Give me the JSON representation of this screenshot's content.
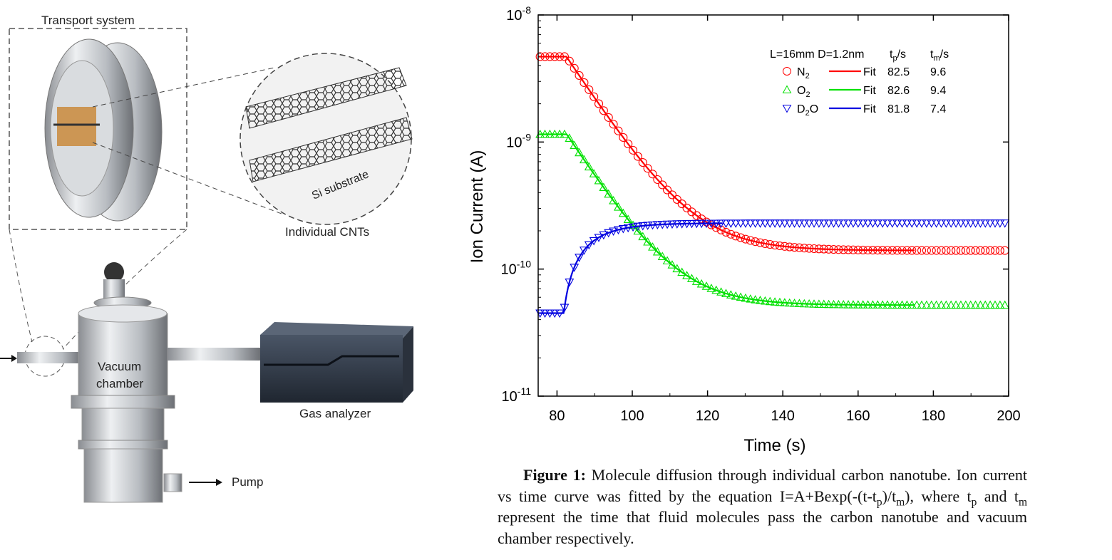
{
  "diagram": {
    "transport_label": "Transport system",
    "cnt_label": "Individual CNTs",
    "substrate_label": "Si substrate",
    "chamber_label_1": "Vacuum",
    "chamber_label_2": "chamber",
    "analyzer_label": "Gas analyzer",
    "pump_label": "Pump"
  },
  "legend": {
    "header": "L=16mm D=1.2nm",
    "tp_header": "t",
    "tp_sub": "p",
    "tm_header": "t",
    "tm_sub": "m",
    "unit": "/s",
    "fit_label": "Fit"
  },
  "chart_data": {
    "type": "scatter",
    "title": "",
    "xlabel": "Time (s)",
    "ylabel": "Ion Current (A)",
    "xlim": [
      75,
      200
    ],
    "ylim": [
      1e-11,
      1e-08
    ],
    "yscale": "log",
    "xticks": [
      "80",
      "100",
      "120",
      "140",
      "160",
      "180",
      "200"
    ],
    "xtick_values": [
      80,
      100,
      120,
      140,
      160,
      180,
      200
    ],
    "yticks": [
      {
        "base": "10",
        "exp": "-8",
        "value": 1e-08
      },
      {
        "base": "10",
        "exp": "-9",
        "value": 1e-09
      },
      {
        "base": "10",
        "exp": "-10",
        "value": 1e-10
      },
      {
        "base": "10",
        "exp": "-11",
        "value": 1e-11
      }
    ],
    "grid": false,
    "legend_position": "top-right",
    "series": [
      {
        "name": "N",
        "sub": "2",
        "marker": "circle",
        "color": "#ff0000",
        "tp": "82.5",
        "tm": "9.6",
        "start": 4.7e-09,
        "end": 1.4e-10,
        "direction": "decay",
        "marker_step": 1.3,
        "fit_range": [
          82.5,
          175
        ]
      },
      {
        "name": "O",
        "sub": "2",
        "marker": "triangle-up",
        "color": "#00e000",
        "tp": "82.6",
        "tm": "9.4",
        "start": 1.15e-09,
        "end": 5.2e-11,
        "direction": "decay",
        "marker_step": 1.3,
        "fit_range": [
          82.6,
          175
        ]
      },
      {
        "name": "D",
        "sub": "2",
        "name_tail": "O",
        "marker": "triangle-down",
        "color": "#0000e0",
        "tp": "81.8",
        "tm": "7.4",
        "start": 4.5e-11,
        "end": 2.3e-10,
        "direction": "rise",
        "marker_step": 1.3,
        "fit_range": [
          81.8,
          124
        ]
      }
    ]
  },
  "caption": {
    "bold": "Figure 1:",
    "text_1": " Molecule diffusion through individual carbon nanotube. Ion current vs time curve was fitted by the equation I=A+Bexp(-(t-t",
    "sub_p": "p",
    "text_2": ")/t",
    "sub_m": "m",
    "text_3": "), where t",
    "text_4": " and t",
    "text_5": " represent the time that fluid molecules pass the carbon nanotube and vacuum chamber respectively."
  }
}
